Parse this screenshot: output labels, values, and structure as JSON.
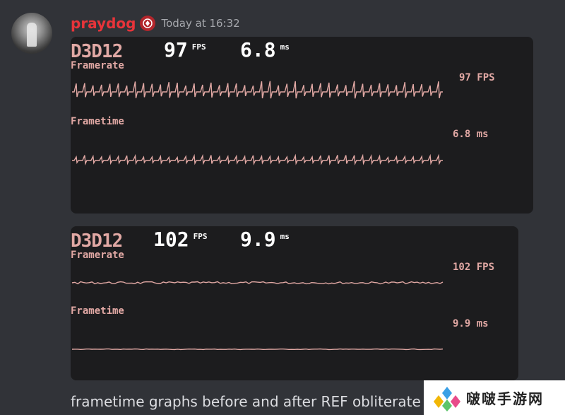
{
  "message": {
    "username": "praydog",
    "timestamp": "Today at 16:32",
    "caption": "frametime graphs before and after REF obliterate"
  },
  "panels": [
    {
      "api": "D3D12",
      "fps_value": "97",
      "fps_unit": "FPS",
      "ms_value": "6.8",
      "ms_unit": "ms",
      "framerate_label": "Framerate",
      "framerate_readout": "97 FPS",
      "frametime_label": "Frametime",
      "frametime_readout": "6.8 ms",
      "pattern": "spiky"
    },
    {
      "api": "D3D12",
      "fps_value": "102",
      "fps_unit": "FPS",
      "ms_value": "9.9",
      "ms_unit": "ms",
      "framerate_label": "Framerate",
      "framerate_readout": "102 FPS",
      "frametime_label": "Frametime",
      "frametime_readout": "9.9 ms",
      "pattern": "smooth"
    }
  ],
  "watermark": {
    "text": "啵啵手游网"
  },
  "colors": {
    "graph": "#e1a8a4",
    "username": "#e8343a",
    "panel": "#1c1c1e"
  }
}
